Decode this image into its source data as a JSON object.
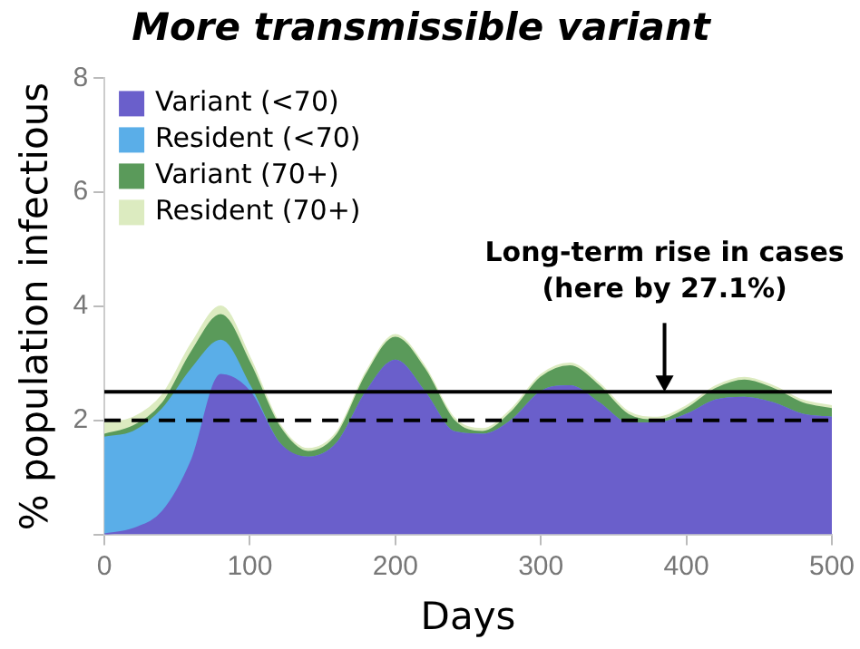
{
  "chart_data": {
    "type": "area",
    "title": "More transmissible variant",
    "xlabel": "Days",
    "ylabel": "% population infectious",
    "stacked": true,
    "x": [
      0,
      20,
      40,
      60,
      80,
      100,
      120,
      140,
      160,
      180,
      200,
      220,
      240,
      260,
      280,
      300,
      320,
      340,
      360,
      380,
      400,
      420,
      440,
      460,
      480,
      500
    ],
    "series": [
      {
        "name": "Variant (<70)",
        "color": "#6a5fcb",
        "values": [
          0,
          0.1,
          0.4,
          1.3,
          2.8,
          2.5,
          1.6,
          1.35,
          1.6,
          2.5,
          3.05,
          2.5,
          1.8,
          1.75,
          2.0,
          2.5,
          2.6,
          2.3,
          1.95,
          1.95,
          2.1,
          2.35,
          2.4,
          2.3,
          2.1,
          2.05
        ]
      },
      {
        "name": "Resident (<70)",
        "color": "#5aaee8",
        "values": [
          1.7,
          1.7,
          1.8,
          1.6,
          0.6,
          0.1,
          0,
          0,
          0,
          0,
          0,
          0,
          0,
          0,
          0,
          0,
          0,
          0,
          0,
          0,
          0,
          0,
          0,
          0,
          0,
          0
        ]
      },
      {
        "name": "Variant (70+)",
        "color": "#5a9a5a",
        "values": [
          0.05,
          0.1,
          0.1,
          0.3,
          0.45,
          0.4,
          0.3,
          0.1,
          0.15,
          0.3,
          0.4,
          0.4,
          0.2,
          0.05,
          0.15,
          0.25,
          0.35,
          0.3,
          0.15,
          0.05,
          0.1,
          0.2,
          0.3,
          0.25,
          0.2,
          0.15
        ]
      },
      {
        "name": "Resident (70+)",
        "color": "#dcebc0",
        "values": [
          0.2,
          0.15,
          0.15,
          0.15,
          0.15,
          0.1,
          0.05,
          0.05,
          0.05,
          0.05,
          0.05,
          0.05,
          0.05,
          0.05,
          0.05,
          0.05,
          0.05,
          0.05,
          0.05,
          0.05,
          0.05,
          0.05,
          0.05,
          0.05,
          0.05,
          0.05
        ]
      }
    ],
    "xlim": [
      0,
      500
    ],
    "xticks": [
      0,
      100,
      200,
      300,
      400,
      500
    ],
    "ylim": [
      0,
      8
    ],
    "yticks": [
      {
        "value": 0,
        "label": null
      },
      2,
      4,
      6,
      8
    ],
    "ref_lines": [
      {
        "axis": "y",
        "value": 2.5,
        "color": "#000000",
        "line_style": "solid"
      },
      {
        "axis": "y",
        "value": 2,
        "color": "#000000",
        "line_style": "dashed"
      }
    ],
    "annotations": [
      {
        "text": "Long-term rise in cases\n(here by 27.1%)",
        "x": 385,
        "y": 2.5
      }
    ],
    "legend": "top left",
    "grid": false
  }
}
